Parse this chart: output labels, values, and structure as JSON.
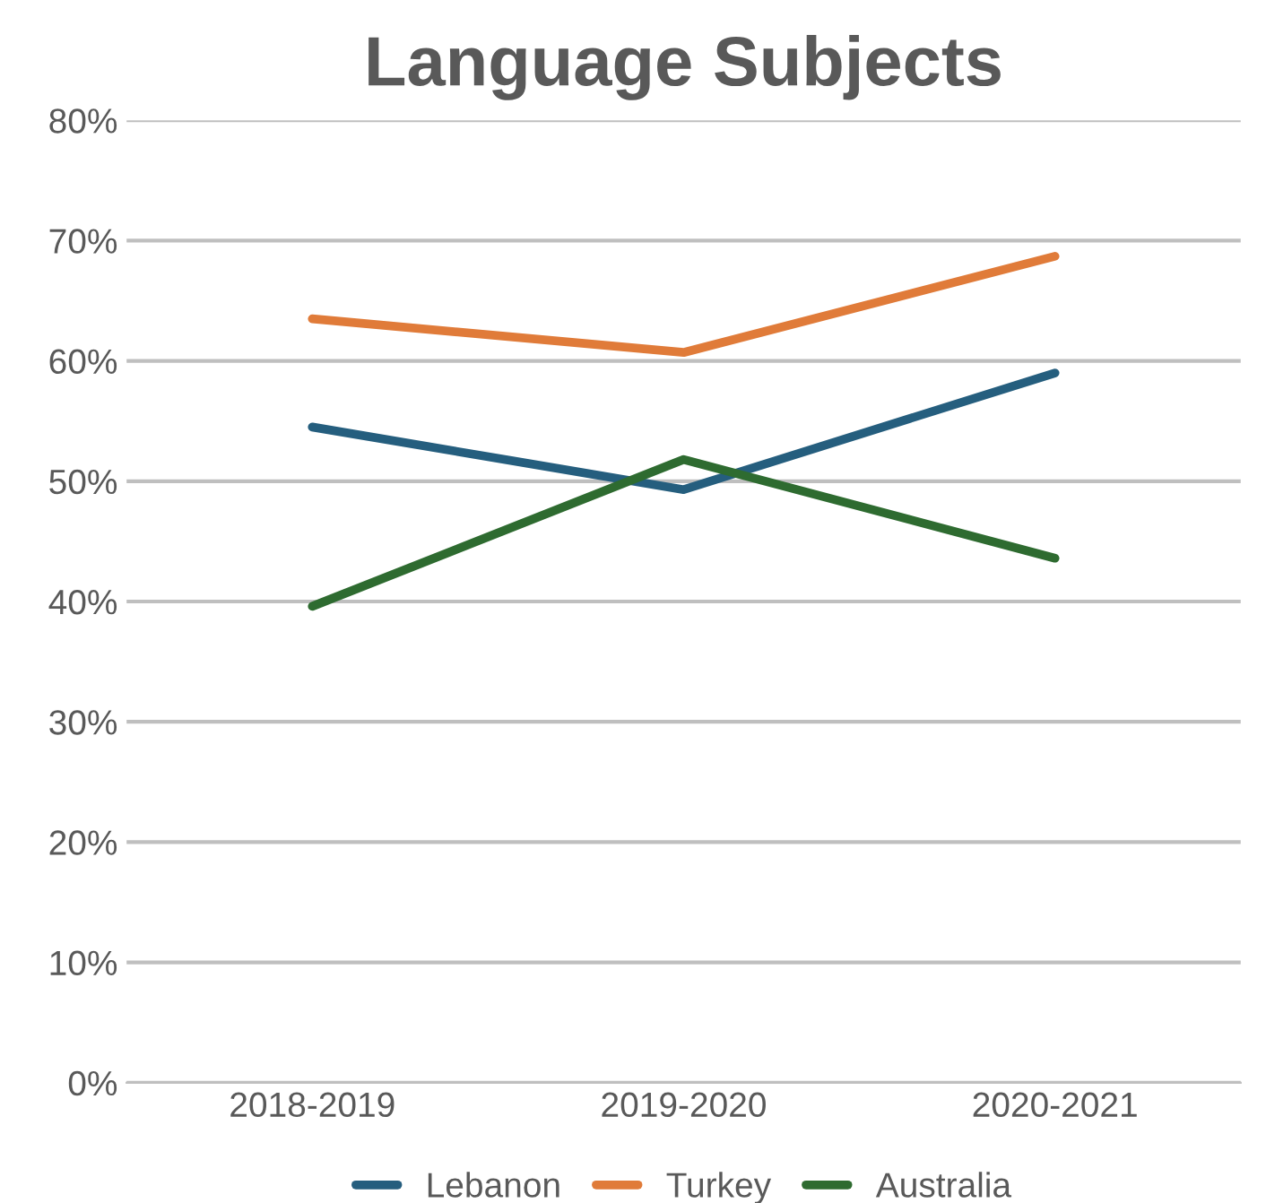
{
  "chart_data": {
    "type": "line",
    "title": "Language Subjects",
    "categories": [
      "2018-2019",
      "2019-2020",
      "2020-2021"
    ],
    "series": [
      {
        "name": "Lebanon",
        "color": "#255e7e",
        "values": [
          54.5,
          49.3,
          59.0
        ]
      },
      {
        "name": "Turkey",
        "color": "#e07b39",
        "values": [
          63.5,
          60.7,
          68.7
        ]
      },
      {
        "name": "Australia",
        "color": "#2e6b30",
        "values": [
          39.6,
          51.8,
          43.6
        ]
      }
    ],
    "ylim": [
      0,
      80
    ],
    "yticks": [
      {
        "value": 0,
        "label": "0%"
      },
      {
        "value": 10,
        "label": "10%"
      },
      {
        "value": 20,
        "label": "20%"
      },
      {
        "value": 30,
        "label": "30%"
      },
      {
        "value": 40,
        "label": "40%"
      },
      {
        "value": 50,
        "label": "50%"
      },
      {
        "value": 60,
        "label": "60%"
      },
      {
        "value": 70,
        "label": "70%"
      },
      {
        "value": 80,
        "label": "80%"
      }
    ],
    "grid": "y",
    "legend": "bottom",
    "marker": "none",
    "line_style": "solid"
  }
}
